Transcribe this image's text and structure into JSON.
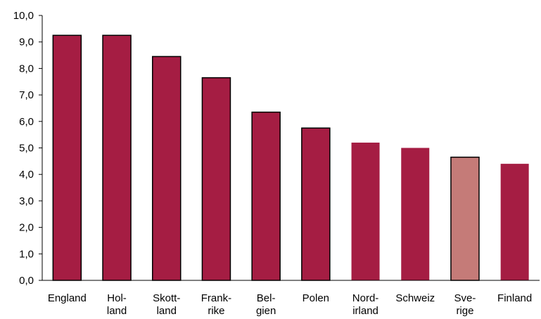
{
  "chart_data": {
    "type": "bar",
    "categories": [
      [
        "England"
      ],
      [
        "Hol-",
        "land"
      ],
      [
        "Skott-",
        "land"
      ],
      [
        "Frank-",
        "rike"
      ],
      [
        "Bel-",
        "gien"
      ],
      [
        "Polen"
      ],
      [
        "Nord-",
        "irland"
      ],
      [
        "Schweiz"
      ],
      [
        "Sve-",
        "rige"
      ],
      [
        "Finland"
      ]
    ],
    "values": [
      9.25,
      9.25,
      8.45,
      7.65,
      6.35,
      5.75,
      5.2,
      5.0,
      4.65,
      4.4
    ],
    "ylim": [
      0,
      10
    ],
    "yticks": [
      "0,0",
      "1,0",
      "2,0",
      "3,0",
      "4,0",
      "5,0",
      "6,0",
      "7,0",
      "8,0",
      "9,0",
      "10,0"
    ],
    "colors": {
      "bar": "#a51d43",
      "highlight": "#c57b78",
      "outline": "#000000",
      "axis": "#000000"
    },
    "highlight_index": 8,
    "outlined_indices": [
      0,
      1,
      2,
      3,
      4,
      5,
      8
    ],
    "grid": false,
    "legend": "none"
  }
}
